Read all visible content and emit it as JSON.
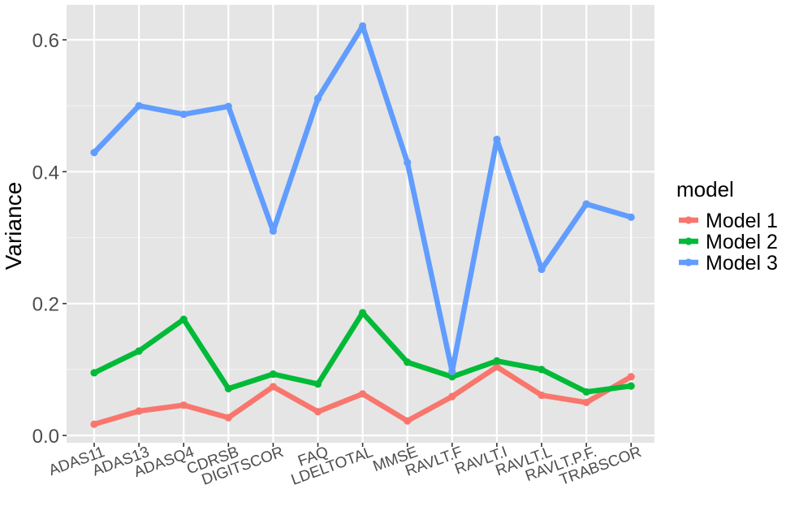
{
  "chart_data": {
    "type": "line",
    "title": "",
    "xlabel": "",
    "ylabel": "Variance",
    "ylim": [
      -0.01,
      0.65
    ],
    "y_ticks": [
      0.0,
      0.2,
      0.4,
      0.6
    ],
    "y_tick_labels": [
      "0.0",
      "0.2",
      "0.4",
      "0.6"
    ],
    "grid": true,
    "categories": [
      "ADAS11",
      "ADAS13",
      "ADASQ4",
      "CDRSB",
      "DIGITSCOR",
      "FAQ",
      "LDELTOTAL",
      "MMSE",
      "RAVLT.F",
      "RAVLT.I",
      "RAVLT.L",
      "RAVLT.P.F.",
      "TRABSCOR"
    ],
    "legend": {
      "title": "model",
      "placement": "right"
    },
    "series": [
      {
        "name": "Model 1",
        "color": "#F8766D",
        "values": [
          0.017,
          0.037,
          0.046,
          0.027,
          0.074,
          0.036,
          0.063,
          0.022,
          0.059,
          0.104,
          0.061,
          0.05,
          0.089
        ]
      },
      {
        "name": "Model 2",
        "color": "#00BA38",
        "values": [
          0.095,
          0.128,
          0.176,
          0.071,
          0.093,
          0.078,
          0.186,
          0.111,
          0.089,
          0.113,
          0.1,
          0.066,
          0.075
        ]
      },
      {
        "name": "Model 3",
        "color": "#619CFF",
        "values": [
          0.429,
          0.5,
          0.487,
          0.499,
          0.31,
          0.511,
          0.621,
          0.414,
          0.097,
          0.449,
          0.252,
          0.351,
          0.331
        ]
      }
    ]
  }
}
